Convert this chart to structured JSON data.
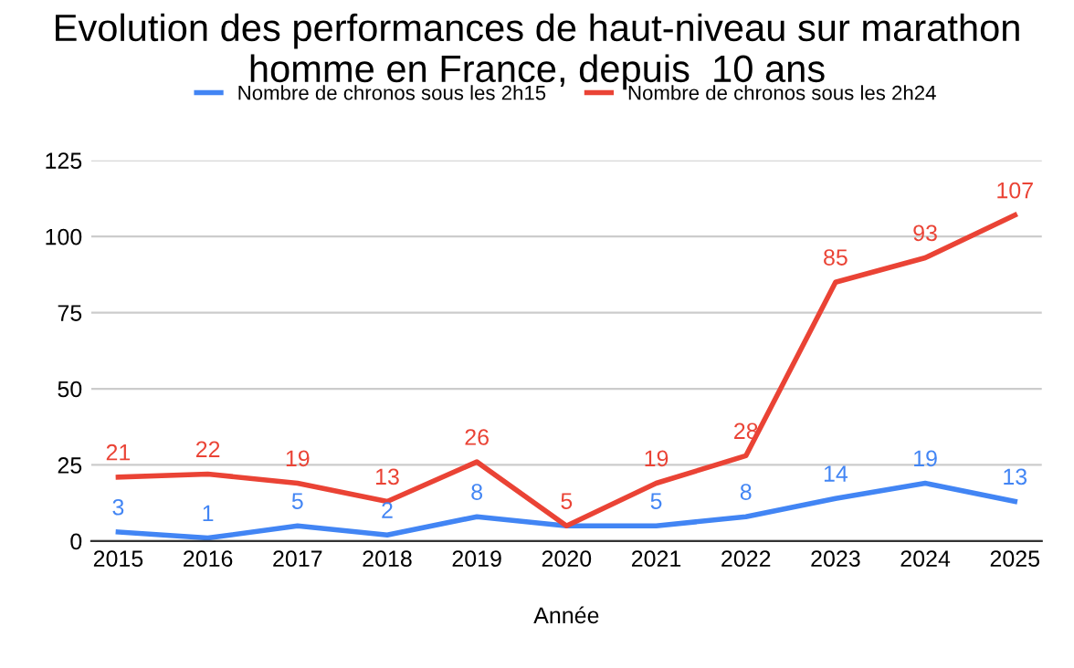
{
  "chart_data": {
    "type": "line",
    "title": "Evolution des performances de haut-niveau sur marathon\nhomme en France, depuis  10 ans",
    "xlabel": "Année",
    "categories": [
      "2015",
      "2016",
      "2017",
      "2018",
      "2019",
      "2020",
      "2021",
      "2022",
      "2023",
      "2024",
      "2025"
    ],
    "series": [
      {
        "name": "Nombre de chronos sous les 2h15",
        "color": "#4285f4",
        "values": [
          3,
          1,
          5,
          2,
          8,
          5,
          5,
          8,
          14,
          19,
          13
        ],
        "value_labels": [
          "3",
          "1",
          "5",
          "2",
          "8",
          null,
          "5",
          "8",
          "14",
          "19",
          "13"
        ]
      },
      {
        "name": "Nombre de chronos sous les 2h24",
        "color": "#ea4335",
        "values": [
          21,
          22,
          19,
          13,
          26,
          5,
          19,
          28,
          85,
          93,
          107
        ],
        "value_labels": [
          "21",
          "22",
          "19",
          "13",
          "26",
          "5",
          "19",
          "28",
          "85",
          "93",
          "107"
        ]
      }
    ],
    "ylim": [
      0,
      125
    ],
    "yticks": [
      0,
      25,
      50,
      75,
      100,
      125
    ],
    "grid": "y",
    "legend": "top",
    "marker": "none",
    "line_style": "solid"
  }
}
